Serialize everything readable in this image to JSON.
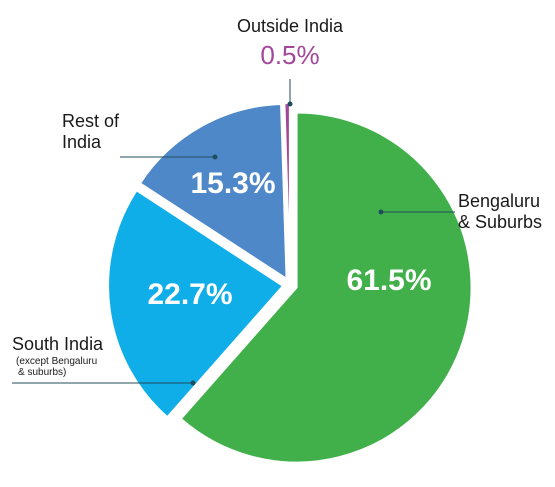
{
  "chart_data": {
    "type": "pie",
    "slices": [
      {
        "key": "bengaluru",
        "value": 61.5,
        "value_label": "61.5%",
        "label_lines": [
          "Bengaluru",
          "& Suburbs"
        ],
        "note_lines": [],
        "color": "#41b04a",
        "value_label_color": "#ffffff"
      },
      {
        "key": "south-india",
        "value": 22.7,
        "value_label": "22.7%",
        "label_lines": [
          "South India"
        ],
        "note_lines": [
          "(except Bengaluru",
          "& suburbs)"
        ],
        "color": "#10aee8",
        "value_label_color": "#ffffff"
      },
      {
        "key": "rest-of-india",
        "value": 15.3,
        "value_label": "15.3%",
        "label_lines": [
          "Rest of",
          "India"
        ],
        "note_lines": [],
        "color": "#4f88c9",
        "value_label_color": "#ffffff"
      },
      {
        "key": "outside-india",
        "value": 0.5,
        "value_label": "0.5%",
        "label_lines": [
          "Outside India"
        ],
        "note_lines": [],
        "color": "#a3479a",
        "value_label_color": "#a3479a"
      }
    ],
    "leader_line_color": "#1f4e5a",
    "legend": "none"
  }
}
